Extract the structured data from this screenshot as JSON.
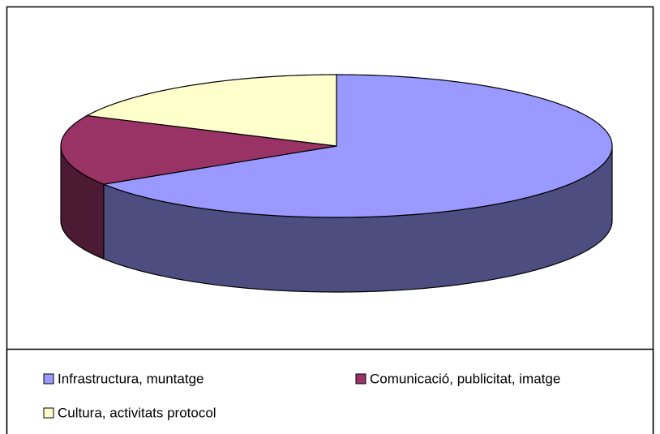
{
  "chart_data": {
    "type": "pie",
    "categories": [
      "Infrastructura, muntatge",
      "Comunicació, publicitat, imatge",
      "Cultura, activitats protocol"
    ],
    "values": [
      66,
      16,
      18
    ],
    "colors": [
      "#9999ff",
      "#993366",
      "#ffffcc"
    ],
    "side_colors": [
      "#4d4d80",
      "#4d1a33",
      "#80806a"
    ],
    "legend": "bottom"
  }
}
